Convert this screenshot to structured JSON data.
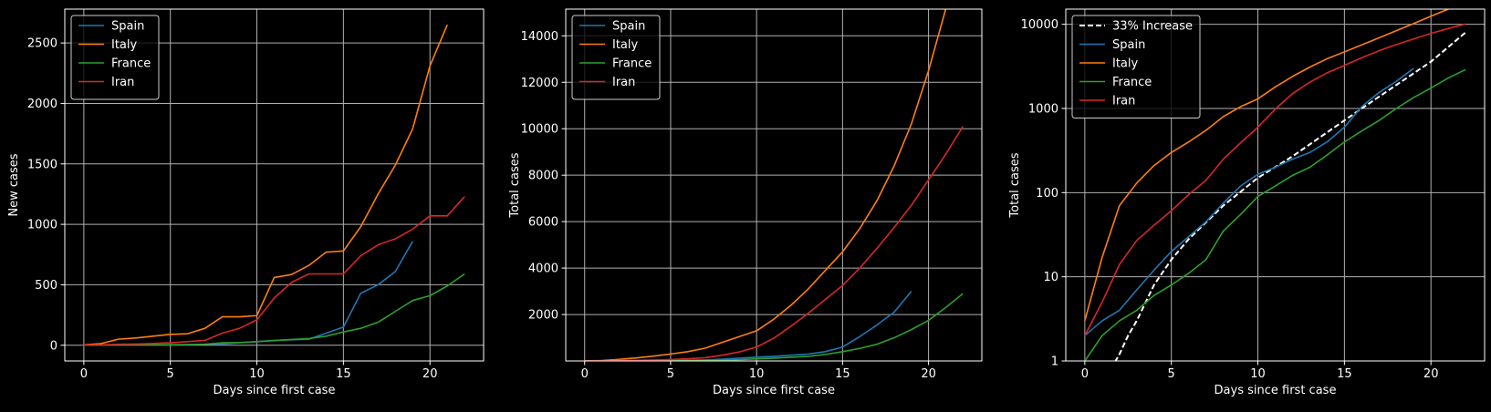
{
  "colors": {
    "background": "#000000",
    "axes": "#ffffff",
    "grid": "#b0b0b0",
    "Spain": "#1f77b4",
    "Italy": "#ff7f0e",
    "France": "#2ca02c",
    "Iran": "#d62728",
    "reference": "#ffffff"
  },
  "chart_data": [
    {
      "type": "line",
      "title": "",
      "xlabel": "Days since first case",
      "ylabel": "New cases",
      "xlim": [
        -1.1,
        23.1
      ],
      "ylim": [
        -130,
        2780
      ],
      "xticks": [
        0,
        5,
        10,
        15,
        20
      ],
      "yticks": [
        0,
        500,
        1000,
        1500,
        2000,
        2500
      ],
      "ytick_labels": [
        "0",
        "500",
        "1000",
        "1500",
        "2000",
        "2500"
      ],
      "grid": true,
      "legend_position": "upper-left",
      "series": [
        {
          "name": "Spain",
          "x": [
            0,
            1,
            2,
            3,
            4,
            5,
            6,
            7,
            8,
            9,
            10,
            11,
            12,
            13,
            14,
            15,
            16,
            17,
            18,
            19
          ],
          "y": [
            1,
            1,
            1,
            2,
            3,
            4,
            5,
            8,
            12,
            20,
            30,
            40,
            45,
            50,
            100,
            150,
            430,
            500,
            610,
            860
          ]
        },
        {
          "name": "Italy",
          "x": [
            0,
            1,
            2,
            3,
            4,
            5,
            6,
            7,
            8,
            9,
            10,
            11,
            12,
            13,
            14,
            15,
            16,
            17,
            18,
            19,
            20,
            21
          ],
          "y": [
            3,
            14,
            50,
            60,
            75,
            90,
            95,
            140,
            235,
            235,
            245,
            560,
            585,
            660,
            770,
            780,
            980,
            1250,
            1490,
            1790,
            2310,
            2650
          ]
        },
        {
          "name": "France",
          "x": [
            0,
            1,
            2,
            3,
            4,
            5,
            6,
            7,
            8,
            9,
            10,
            11,
            12,
            13,
            14,
            15,
            16,
            17,
            18,
            19,
            20,
            21,
            22
          ],
          "y": [
            1,
            2,
            2,
            2,
            3,
            3,
            5,
            8,
            20,
            22,
            30,
            38,
            48,
            55,
            75,
            110,
            140,
            190,
            280,
            370,
            410,
            490,
            590
          ]
        },
        {
          "name": "Iran",
          "x": [
            0,
            1,
            2,
            3,
            4,
            5,
            6,
            7,
            8,
            9,
            10,
            11,
            12,
            13,
            14,
            15,
            16,
            17,
            18,
            19,
            20,
            21,
            22
          ],
          "y": [
            2,
            3,
            8,
            10,
            15,
            20,
            30,
            40,
            100,
            140,
            210,
            390,
            520,
            590,
            590,
            590,
            740,
            830,
            880,
            960,
            1070,
            1070,
            1230
          ]
        }
      ]
    },
    {
      "type": "line",
      "title": "",
      "xlabel": "Days since first case",
      "ylabel": "Total cases",
      "xlim": [
        -1.1,
        23.1
      ],
      "ylim": [
        1,
        15150
      ],
      "xticks": [
        0,
        5,
        10,
        15,
        20
      ],
      "yticks": [
        2000,
        4000,
        6000,
        8000,
        10000,
        12000,
        14000
      ],
      "ytick_labels": [
        "2000",
        "4000",
        "6000",
        "8000",
        "10000",
        "12000",
        "14000"
      ],
      "grid": true,
      "legend_position": "upper-left",
      "series": [
        {
          "name": "Spain",
          "x": [
            0,
            1,
            2,
            3,
            4,
            5,
            6,
            7,
            8,
            9,
            10,
            11,
            12,
            13,
            14,
            15,
            16,
            17,
            18,
            19
          ],
          "y": [
            2,
            3,
            4,
            7,
            12,
            20,
            30,
            45,
            75,
            120,
            165,
            200,
            250,
            300,
            400,
            600,
            1050,
            1550,
            2100,
            3000
          ]
        },
        {
          "name": "Italy",
          "x": [
            0,
            1,
            2,
            3,
            4,
            5,
            6,
            7,
            8,
            9,
            10,
            11,
            12,
            13,
            14,
            15,
            16,
            17,
            18,
            19,
            20,
            21,
            22
          ],
          "y": [
            3,
            17,
            70,
            130,
            210,
            300,
            400,
            550,
            800,
            1050,
            1300,
            1800,
            2400,
            3100,
            3900,
            4700,
            5700,
            6900,
            8400,
            10200,
            12500,
            15150,
            17600
          ]
        },
        {
          "name": "France",
          "x": [
            0,
            1,
            2,
            3,
            4,
            5,
            6,
            7,
            8,
            9,
            10,
            11,
            12,
            13,
            14,
            15,
            16,
            17,
            18,
            19,
            20,
            21,
            22
          ],
          "y": [
            1,
            2,
            3,
            4,
            6,
            8,
            11,
            16,
            35,
            55,
            90,
            120,
            160,
            200,
            280,
            400,
            540,
            720,
            1000,
            1350,
            1750,
            2300,
            2900
          ]
        },
        {
          "name": "Iran",
          "x": [
            0,
            1,
            2,
            3,
            4,
            5,
            6,
            7,
            8,
            9,
            10,
            11,
            12,
            13,
            14,
            15,
            16,
            17,
            18,
            19,
            20,
            21,
            22
          ],
          "y": [
            2,
            5,
            14,
            27,
            41,
            61,
            95,
            140,
            250,
            390,
            600,
            980,
            1500,
            2050,
            2650,
            3250,
            4000,
            4850,
            5750,
            6700,
            7800,
            8900,
            10100
          ]
        }
      ]
    },
    {
      "type": "line",
      "title": "",
      "xlabel": "Days since first case",
      "ylabel": "Total cases",
      "yscale": "log",
      "xlim": [
        -1.1,
        23.1
      ],
      "ylim": [
        1,
        15150
      ],
      "xticks": [
        0,
        5,
        10,
        15,
        20
      ],
      "yticks": [
        1,
        10,
        100,
        1000,
        10000
      ],
      "ytick_labels": [
        "1",
        "10",
        "100",
        "1000",
        "10000"
      ],
      "grid": true,
      "legend_position": "upper-left",
      "series": [
        {
          "name": "33% Increase",
          "style": "dashed",
          "x": [
            1.5,
            2,
            2.5,
            3,
            4,
            5,
            6,
            8,
            10,
            12,
            14,
            16,
            18,
            20,
            22
          ],
          "y": [
            0.8,
            1.2,
            2,
            3,
            8,
            16,
            28,
            70,
            150,
            270,
            520,
            1000,
            1900,
            3600,
            8000
          ]
        },
        {
          "name": "Spain",
          "x": [
            0,
            1,
            2,
            3,
            4,
            5,
            6,
            7,
            8,
            9,
            10,
            11,
            12,
            13,
            14,
            15,
            16,
            17,
            18,
            19
          ],
          "y": [
            2,
            3,
            4,
            7,
            12,
            20,
            30,
            45,
            75,
            120,
            165,
            200,
            250,
            300,
            400,
            600,
            1050,
            1550,
            2100,
            3000
          ]
        },
        {
          "name": "Italy",
          "x": [
            0,
            1,
            2,
            3,
            4,
            5,
            6,
            7,
            8,
            9,
            10,
            11,
            12,
            13,
            14,
            15,
            16,
            17,
            18,
            19,
            20,
            21,
            22
          ],
          "y": [
            3,
            17,
            70,
            130,
            210,
            300,
            400,
            550,
            800,
            1050,
            1300,
            1800,
            2400,
            3100,
            3900,
            4700,
            5700,
            6900,
            8400,
            10200,
            12500,
            15150,
            17600
          ]
        },
        {
          "name": "France",
          "x": [
            0,
            1,
            2,
            3,
            4,
            5,
            6,
            7,
            8,
            9,
            10,
            11,
            12,
            13,
            14,
            15,
            16,
            17,
            18,
            19,
            20,
            21,
            22
          ],
          "y": [
            1,
            2,
            3,
            4,
            6,
            8,
            11,
            16,
            35,
            55,
            90,
            120,
            160,
            200,
            280,
            400,
            540,
            720,
            1000,
            1350,
            1750,
            2300,
            2900
          ]
        },
        {
          "name": "Iran",
          "x": [
            0,
            1,
            2,
            3,
            4,
            5,
            6,
            7,
            8,
            9,
            10,
            11,
            12,
            13,
            14,
            15,
            16,
            17,
            18,
            19,
            20,
            21,
            22
          ],
          "y": [
            2,
            5,
            14,
            27,
            41,
            61,
            95,
            140,
            250,
            390,
            600,
            980,
            1500,
            2050,
            2650,
            3250,
            4000,
            4850,
            5750,
            6700,
            7800,
            8900,
            10100
          ]
        }
      ]
    }
  ]
}
